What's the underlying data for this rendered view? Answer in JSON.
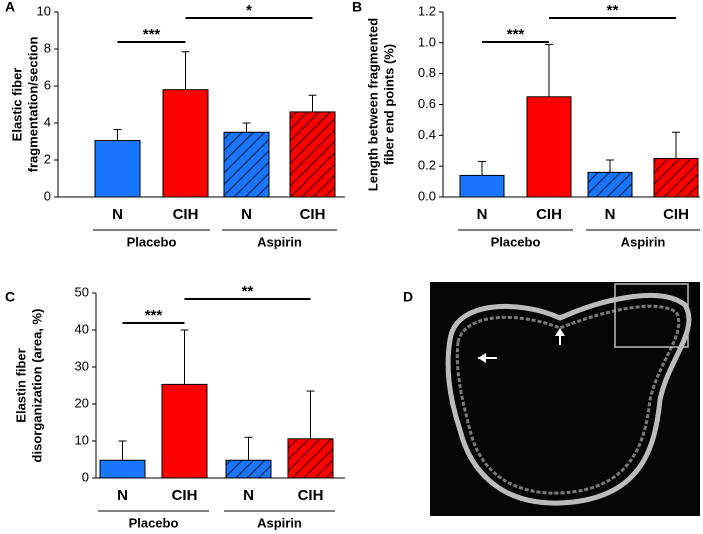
{
  "chart_data": [
    {
      "type": "bar",
      "panel": "A",
      "ylabel": [
        "Elastic fiber",
        "fragmentation/section"
      ],
      "categories": [
        "N",
        "CIH",
        "N",
        "CIH"
      ],
      "groups": [
        "Placebo",
        "Aspirin"
      ],
      "values": [
        3.05,
        5.8,
        3.5,
        4.6
      ],
      "errors": [
        0.6,
        2.05,
        0.5,
        0.9
      ],
      "colors": [
        "#1a75ff",
        "#ff0000",
        "#1a75ff",
        "#ff0000"
      ],
      "hatched": [
        false,
        false,
        true,
        true
      ],
      "significance": [
        "***",
        "*"
      ],
      "ylim": [
        0,
        10
      ],
      "yticks": [
        0,
        2,
        4,
        6,
        8,
        10
      ]
    },
    {
      "type": "bar",
      "panel": "B",
      "ylabel": [
        "Length between fragmented",
        "fiber end points (%)"
      ],
      "categories": [
        "N",
        "CIH",
        "N",
        "CIH"
      ],
      "groups": [
        "Placebo",
        "Aspirin"
      ],
      "values": [
        0.14,
        0.65,
        0.16,
        0.25
      ],
      "errors": [
        0.09,
        0.34,
        0.08,
        0.17
      ],
      "colors": [
        "#1a75ff",
        "#ff0000",
        "#1a75ff",
        "#ff0000"
      ],
      "hatched": [
        false,
        false,
        true,
        true
      ],
      "significance": [
        "***",
        "**"
      ],
      "ylim": [
        0,
        1.2
      ],
      "yticks": [
        {
          "value": 0,
          "label": "0.0"
        },
        0.2,
        0.4,
        0.6,
        0.8,
        {
          "value": 1,
          "label": "1.0"
        },
        1.2
      ]
    },
    {
      "type": "bar",
      "panel": "C",
      "ylabel": [
        "Elastin fiber",
        "disorganization (area, %)"
      ],
      "categories": [
        "N",
        "CIH",
        "N",
        "CIH"
      ],
      "groups": [
        "Placebo",
        "Aspirin"
      ],
      "values": [
        4.8,
        25.3,
        4.8,
        10.6
      ],
      "errors": [
        5.2,
        14.7,
        6.2,
        12.9
      ],
      "colors": [
        "#1a75ff",
        "#ff0000",
        "#1a75ff",
        "#ff0000"
      ],
      "hatched": [
        false,
        false,
        true,
        true
      ],
      "significance": [
        "***",
        "**"
      ],
      "ylim": [
        0,
        50
      ],
      "yticks": [
        0,
        10,
        20,
        30,
        40,
        50
      ]
    }
  ],
  "image_panel": {
    "panel": "D"
  }
}
